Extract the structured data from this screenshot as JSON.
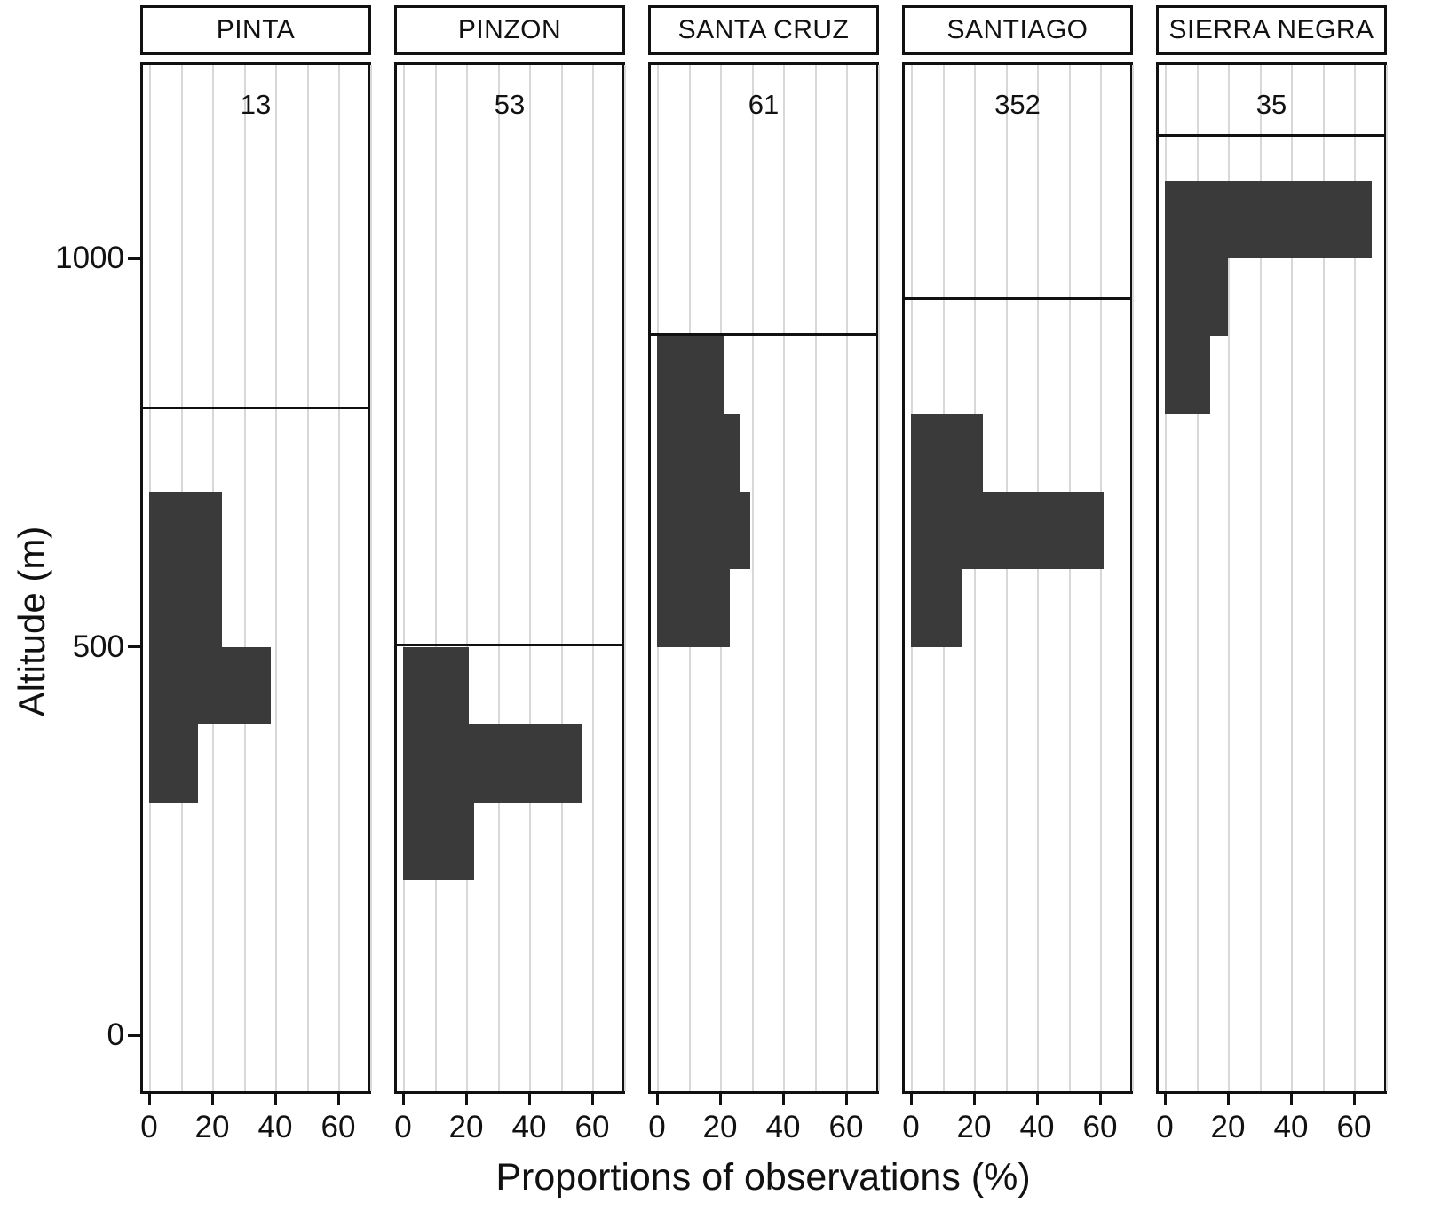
{
  "chart_data": {
    "type": "bar",
    "orientation": "horizontal",
    "xlabel": "Proportions of observations (%)",
    "ylabel": "Altitude (m)",
    "xlim": [
      0,
      70
    ],
    "x_ticks": [
      0,
      20,
      40,
      60
    ],
    "x_gridline_step": 10,
    "ylim": [
      -75,
      1253
    ],
    "y_ticks": [
      1000,
      500,
      0
    ],
    "bin_height_m": 100,
    "bar_color": "#3a3a3a",
    "grid_color": "#d8d8d8",
    "panels": [
      {
        "label": "PINTA",
        "count": "13",
        "max_altitude_line_m": 810,
        "bars": [
          {
            "alt_lo": 600,
            "alt_hi": 700,
            "pct": 23.1
          },
          {
            "alt_lo": 500,
            "alt_hi": 600,
            "pct": 23.1
          },
          {
            "alt_lo": 400,
            "alt_hi": 500,
            "pct": 38.5
          },
          {
            "alt_lo": 300,
            "alt_hi": 400,
            "pct": 15.4
          }
        ]
      },
      {
        "label": "PINZON",
        "count": "53",
        "max_altitude_line_m": 505,
        "bars": [
          {
            "alt_lo": 400,
            "alt_hi": 500,
            "pct": 20.8
          },
          {
            "alt_lo": 300,
            "alt_hi": 400,
            "pct": 56.6
          },
          {
            "alt_lo": 200,
            "alt_hi": 300,
            "pct": 22.6
          }
        ]
      },
      {
        "label": "SANTA CRUZ",
        "count": "61",
        "max_altitude_line_m": 905,
        "bars": [
          {
            "alt_lo": 800,
            "alt_hi": 900,
            "pct": 21.3
          },
          {
            "alt_lo": 700,
            "alt_hi": 800,
            "pct": 26.2
          },
          {
            "alt_lo": 600,
            "alt_hi": 700,
            "pct": 29.5
          },
          {
            "alt_lo": 500,
            "alt_hi": 600,
            "pct": 23.0
          }
        ]
      },
      {
        "label": "SANTIAGO",
        "count": "352",
        "max_altitude_line_m": 950,
        "bars": [
          {
            "alt_lo": 700,
            "alt_hi": 800,
            "pct": 22.7
          },
          {
            "alt_lo": 600,
            "alt_hi": 700,
            "pct": 61.1
          },
          {
            "alt_lo": 500,
            "alt_hi": 600,
            "pct": 16.2
          }
        ]
      },
      {
        "label": "SIERRA NEGRA",
        "count": "35",
        "max_altitude_line_m": 1160,
        "bars": [
          {
            "alt_lo": 1000,
            "alt_hi": 1100,
            "pct": 65.7
          },
          {
            "alt_lo": 900,
            "alt_hi": 1000,
            "pct": 20.0
          },
          {
            "alt_lo": 800,
            "alt_hi": 900,
            "pct": 14.3
          }
        ]
      }
    ]
  },
  "axes": {
    "y_tick_labels": [
      "1000",
      "500",
      "0"
    ],
    "x_tick_labels": [
      "0",
      "20",
      "40",
      "60"
    ]
  }
}
